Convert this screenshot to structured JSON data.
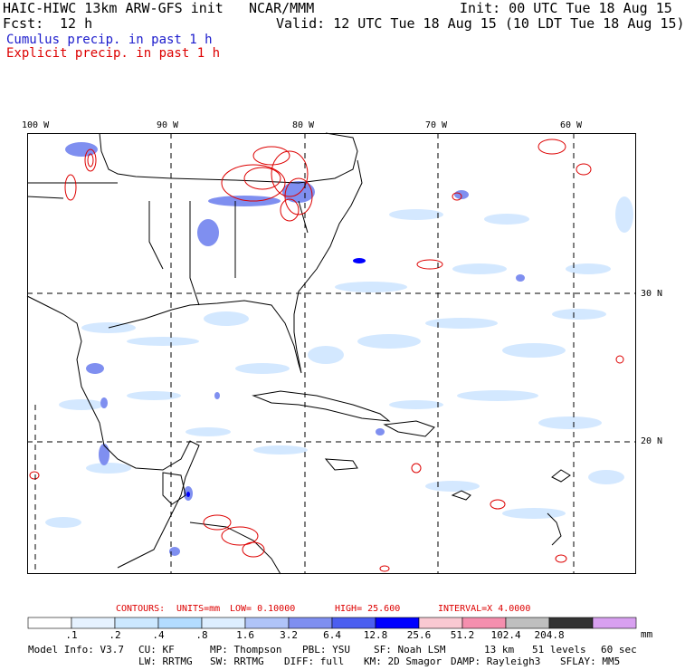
{
  "header": {
    "model": "HAIC-HIWC 13km ARW-GFS init",
    "org": "NCAR/MMM",
    "init": "Init: 00 UTC Tue 18 Aug 15",
    "fcst_label": "Fcst:",
    "fcst_value": "12 h",
    "valid": "Valid: 12 UTC Tue 18 Aug 15 (10 LDT Tue 18 Aug 15)",
    "legend_cumulus": "Cumulus precip. in past 1 h",
    "legend_explicit": "Explicit precip. in past 1 h",
    "cumulus_color": "#1a1acc",
    "explicit_color": "#dd0000"
  },
  "map": {
    "lon_labels": [
      "100 W",
      "90 W",
      "80 W",
      "70 W",
      "60 W"
    ],
    "lat_labels": [
      "30 N",
      "20 N"
    ]
  },
  "contours_info": {
    "contours": "CONTOURS:",
    "units": "UNITS=mm",
    "low": "LOW= 0.10000",
    "high": "HIGH= 25.600",
    "interval": "INTERVAL=X 4.0000"
  },
  "colorbar": {
    "unit": "mm",
    "colors": [
      "#ffffff",
      "#e6f2ff",
      "#cce8ff",
      "#b3dcff",
      "#ddeeff",
      "#b0c4f8",
      "#7f8ff0",
      "#4b5ef0",
      "#0000ff",
      "#f9c9d2",
      "#f58fae",
      "#bfbfbf",
      "#333333",
      "#d8a0f0"
    ],
    "ticks": [
      ".1",
      ".2",
      ".4",
      ".8",
      "1.6",
      "3.2",
      "6.4",
      "12.8",
      "25.6",
      "51.2",
      "102.4",
      "204.8"
    ]
  },
  "model_info": {
    "line1": [
      "Model Info: V3.7",
      "CU: KF",
      "MP: Thompson",
      "PBL: YSU",
      "SF: Noah LSM",
      "13 km",
      "51 levels",
      "60 sec"
    ],
    "line2": [
      "LW: RRTMG",
      "SW: RRTMG",
      "DIFF: full",
      "KM: 2D Smagor",
      "DAMP: Rayleigh3",
      "SFLAY: MM5"
    ]
  }
}
